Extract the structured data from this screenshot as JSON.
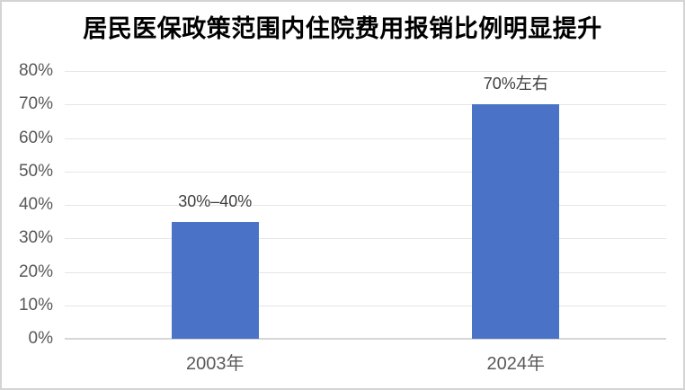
{
  "frame": {
    "background": "#ffffff",
    "border_color": "#d4d4d4"
  },
  "chart_data": {
    "type": "bar",
    "title": "居民医保政策范围内住院费用报销比例明显提升",
    "categories": [
      "2003年",
      "2024年"
    ],
    "values": [
      35,
      70
    ],
    "data_labels": [
      "30%–40%",
      "70%左右"
    ],
    "xlabel": "",
    "ylabel": "",
    "ylim": [
      0,
      80
    ],
    "yticks": [
      {
        "value": 0,
        "label": "0%"
      },
      {
        "value": 10,
        "label": "10%"
      },
      {
        "value": 20,
        "label": "20%"
      },
      {
        "value": 30,
        "label": "30%"
      },
      {
        "value": 40,
        "label": "40%"
      },
      {
        "value": 50,
        "label": "50%"
      },
      {
        "value": 60,
        "label": "60%"
      },
      {
        "value": 70,
        "label": "70%"
      },
      {
        "value": 80,
        "label": "80%"
      }
    ],
    "grid": true,
    "legend": false,
    "colors": {
      "bar": "#4A73C8",
      "gridline": "#e6e6e6",
      "baseline": "#d6d6d6",
      "axis_label": "#595959",
      "data_label": "#3f3f3f",
      "title": "#000000"
    }
  }
}
